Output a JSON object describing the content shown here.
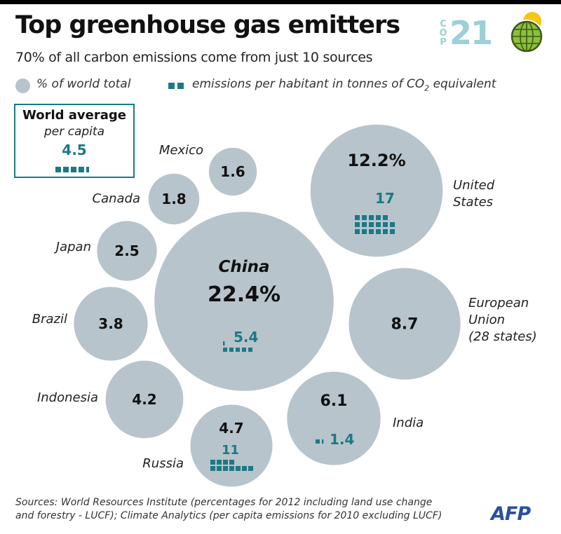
{
  "header": {
    "title": "Top greenhouse gas emitters",
    "subtitle": "70% of all carbon emissions come from just 10 sources"
  },
  "logo": {
    "letters": [
      "C",
      "O",
      "P"
    ],
    "number": "21",
    "icon": "globe-sun-icon",
    "colors": {
      "text": "#9ad0d6",
      "globe": "#8cbf3f",
      "sun": "#f5c518"
    }
  },
  "legend": {
    "share_label": "% of world total",
    "percap_label_main": "emissions per habitant in tonnes of CO",
    "percap_label_sub": "2",
    "percap_label_end": " equivalent"
  },
  "world_average": {
    "title": "World average",
    "subtitle": "per capita",
    "value": "4.5",
    "squares": 4.5
  },
  "colors": {
    "bubble": "#b8c4cc",
    "accent": "#1a7a85"
  },
  "chart_data": {
    "type": "bubble",
    "title": "Top greenhouse gas emitters",
    "subtitle": "70% of all carbon emissions come from just 10 sources",
    "series": [
      {
        "name": "% of world total"
      },
      {
        "name": "emissions per habitant in tonnes of CO2 equivalent"
      }
    ],
    "points": [
      {
        "country": "China",
        "share_label": "22.4%",
        "share": 22.4,
        "percap_label": "5.4",
        "per_capita": 5.4
      },
      {
        "country": "United States",
        "share_label": "12.2%",
        "share": 12.2,
        "percap_label": "17",
        "per_capita": 17
      },
      {
        "country": "European Union (28 states)",
        "share_label": "8.7",
        "share": 8.7,
        "percap_label": "",
        "per_capita": null
      },
      {
        "country": "India",
        "share_label": "6.1",
        "share": 6.1,
        "percap_label": "1.4",
        "per_capita": 1.4
      },
      {
        "country": "Russia",
        "share_label": "4.7",
        "share": 4.7,
        "percap_label": "11",
        "per_capita": 11
      },
      {
        "country": "Indonesia",
        "share_label": "4.2",
        "share": 4.2,
        "percap_label": "",
        "per_capita": null
      },
      {
        "country": "Brazil",
        "share_label": "3.8",
        "share": 3.8,
        "percap_label": "",
        "per_capita": null
      },
      {
        "country": "Japan",
        "share_label": "2.5",
        "share": 2.5,
        "percap_label": "",
        "per_capita": null
      },
      {
        "country": "Canada",
        "share_label": "1.8",
        "share": 1.8,
        "percap_label": "",
        "per_capita": null
      },
      {
        "country": "Mexico",
        "share_label": "1.6",
        "share": 1.6,
        "percap_label": "",
        "per_capita": null
      }
    ],
    "world_average_per_capita": 4.5
  },
  "footer": {
    "source_line1": "Sources: World Resources Institute (percentages for 2012 including land use change",
    "source_line2": "and forestry - LUCF); Climate Analytics (per capita emissions for 2010 excluding LUCF)",
    "agency": "AFP"
  }
}
